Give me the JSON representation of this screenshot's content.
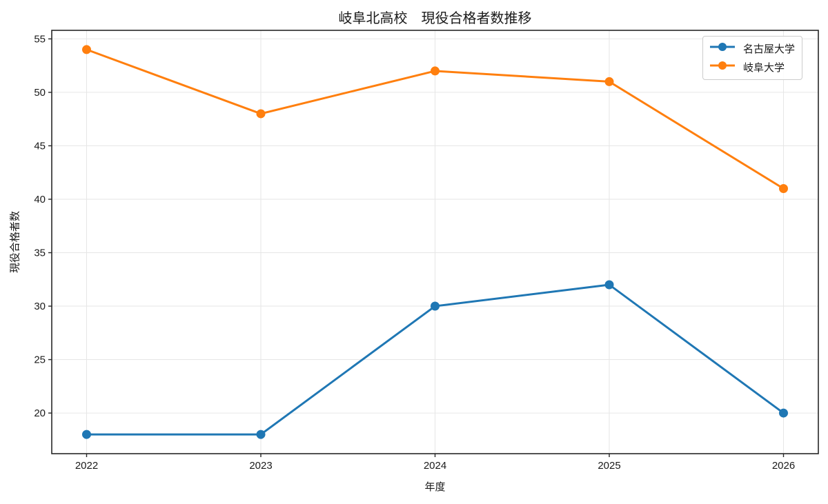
{
  "title": "岐阜北高校　現役合格者数推移",
  "chart_data": {
    "type": "line",
    "title": "岐阜北高校　現役合格者数推移",
    "xlabel": "年度",
    "ylabel": "現役合格者数",
    "x": [
      2022,
      2023,
      2024,
      2025,
      2026
    ],
    "series": [
      {
        "name": "名古屋大学",
        "color": "#1f77b4",
        "values": [
          18,
          18,
          30,
          32,
          20
        ]
      },
      {
        "name": "岐阜大学",
        "color": "#ff7f0e",
        "values": [
          54,
          48,
          52,
          51,
          41
        ]
      }
    ],
    "xticks": [
      2022,
      2023,
      2024,
      2025,
      2026
    ],
    "yticks": [
      20,
      25,
      30,
      35,
      40,
      45,
      50,
      55
    ],
    "xlim": [
      2021.8,
      2026.2
    ],
    "ylim": [
      16.2,
      55.8
    ],
    "grid": true,
    "grid_color": "#e6e6e6",
    "legend_position": "upper right",
    "marker": "circle",
    "line_width": 3,
    "marker_radius": 6.5
  },
  "colors": {
    "text": "#1a1a1a",
    "spine": "#262626",
    "grid": "#e6e6e6",
    "background": "#ffffff",
    "legend_border": "#cccccc"
  }
}
